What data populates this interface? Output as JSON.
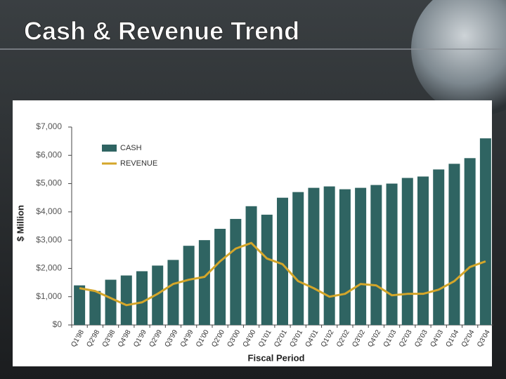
{
  "chart_data": {
    "type": "bar",
    "title": "Cash & Revenue Trend",
    "x_label": "Fiscal Period",
    "y_label": "$ Million",
    "categories": [
      "Q1'98",
      "Q2'98",
      "Q3'98",
      "Q4'98",
      "Q1'99",
      "Q2'99",
      "Q3'99",
      "Q4'99",
      "Q1'00",
      "Q2'00",
      "Q3'00",
      "Q4'00",
      "Q1'01",
      "Q2'01",
      "Q3'01",
      "Q4'01",
      "Q1'02",
      "Q2'02",
      "Q3'02",
      "Q4'02",
      "Q1'03",
      "Q2'03",
      "Q3'03",
      "Q4'03",
      "Q1'04",
      "Q2'04",
      "Q3'04"
    ],
    "series": [
      {
        "name": "CASH",
        "type": "bar",
        "color": "#2f6462",
        "values": [
          1400,
          1200,
          1600,
          1750,
          1900,
          2100,
          2300,
          2800,
          3000,
          3400,
          3750,
          4200,
          3900,
          4500,
          4700,
          4850,
          4900,
          4800,
          4850,
          4950,
          5000,
          5200,
          5250,
          5500,
          5700,
          5900,
          6600
        ]
      },
      {
        "name": "REVENUE",
        "type": "line",
        "color": "#d4a62a",
        "values": [
          1300,
          1200,
          950,
          700,
          800,
          1100,
          1450,
          1600,
          1700,
          2250,
          2700,
          2900,
          2350,
          2150,
          1550,
          1300,
          1000,
          1100,
          1450,
          1400,
          1050,
          1100,
          1100,
          1250,
          1550,
          2050,
          2250
        ]
      }
    ],
    "ylim": [
      0,
      7000
    ],
    "yticks": [
      {
        "value": 0,
        "label": "$0"
      },
      {
        "value": 1000,
        "label": "$1,000"
      },
      {
        "value": 2000,
        "label": "$2,000"
      },
      {
        "value": 3000,
        "label": "$3,000"
      },
      {
        "value": 4000,
        "label": "$4,000"
      },
      {
        "value": 5000,
        "label": "$5,000"
      },
      {
        "value": 6000,
        "label": "$6,000"
      },
      {
        "value": 7000,
        "label": "$7,000"
      }
    ],
    "legend": "top-left",
    "grid": false
  }
}
